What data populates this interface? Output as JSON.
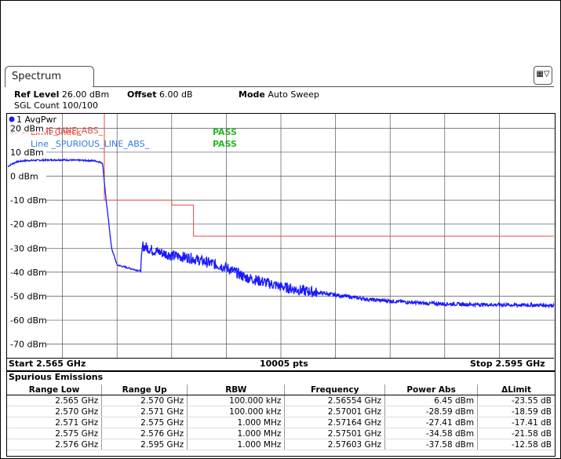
{
  "tab": {
    "label": "Spectrum"
  },
  "config_button": {
    "icon": "settings-config-icon"
  },
  "info": {
    "ref_level_label": "Ref Level",
    "ref_level_value": "26.00 dBm",
    "offset_label": "Offset",
    "offset_value": "6.00 dB",
    "mode_label": "Mode",
    "mode_value": "Auto Sweep",
    "sgl_count": "SGL Count 100/100"
  },
  "trace_label": "1 AvgPwr",
  "limit_lines": [
    {
      "name": "SPURIOUS_LINE_ABS_",
      "check_label": "Limit Check",
      "result": "PASS",
      "color": "#e8483f"
    },
    {
      "name": "Line _SPURIOUS_LINE_ABS_",
      "result": "PASS",
      "color": "#2f7be0"
    }
  ],
  "chart_data": {
    "type": "line",
    "xlim": [
      2.565,
      2.595
    ],
    "ylim": [
      -76,
      26
    ],
    "y_ticks": [
      20,
      10,
      0,
      -10,
      -20,
      -30,
      -40,
      -50,
      -60,
      -70
    ],
    "y_tick_labels": [
      "20 dBm",
      "10 dBm",
      "0 dBm",
      "-10 dBm",
      "-20 dBm",
      "-30 dBm",
      "-40 dBm",
      "-50 dBm",
      "-60 dBm",
      "-70 dBm"
    ],
    "grid": true,
    "trace_color": "#1a1aff",
    "limit_color": "#e8483f",
    "trace_points": [
      [
        2.565,
        4
      ],
      [
        2.5652,
        5
      ],
      [
        2.5655,
        6
      ],
      [
        2.566,
        6.5
      ],
      [
        2.567,
        6.7
      ],
      [
        2.568,
        6.8
      ],
      [
        2.569,
        6.6
      ],
      [
        2.5698,
        6.4
      ],
      [
        2.5702,
        5.5
      ],
      [
        2.5704,
        -10
      ],
      [
        2.5707,
        -30
      ],
      [
        2.571,
        -37
      ],
      [
        2.5715,
        -38
      ],
      [
        2.572,
        -39
      ],
      [
        2.5723,
        -39.5
      ],
      [
        2.5724,
        -29
      ],
      [
        2.573,
        -31
      ],
      [
        2.574,
        -33
      ],
      [
        2.575,
        -34
      ],
      [
        2.576,
        -36
      ],
      [
        2.577,
        -38
      ],
      [
        2.578,
        -42
      ],
      [
        2.579,
        -44
      ],
      [
        2.58,
        -46
      ],
      [
        2.581,
        -47.5
      ],
      [
        2.582,
        -48.5
      ],
      [
        2.583,
        -49.5
      ],
      [
        2.584,
        -50.5
      ],
      [
        2.585,
        -51.5
      ],
      [
        2.586,
        -52
      ],
      [
        2.587,
        -52.5
      ],
      [
        2.588,
        -53
      ],
      [
        2.589,
        -53.2
      ],
      [
        2.59,
        -53.4
      ],
      [
        2.592,
        -53.6
      ],
      [
        2.595,
        -53.8
      ]
    ],
    "limit_points": [
      [
        2.5703,
        26
      ],
      [
        2.5703,
        -10
      ],
      [
        2.574,
        -10
      ],
      [
        2.574,
        -12
      ],
      [
        2.5752,
        -12
      ],
      [
        2.5752,
        -25
      ],
      [
        2.595,
        -25
      ]
    ],
    "start_label": "Start 2.565 GHz",
    "points_label": "10005 pts",
    "stop_label": "Stop 2.595 GHz"
  },
  "table": {
    "title": "Spurious Emissions",
    "columns": [
      "Range Low",
      "Range Up",
      "RBW",
      "Frequency",
      "Power Abs",
      "ΔLimit"
    ],
    "rows": [
      [
        "2.565 GHz",
        "2.570 GHz",
        "100.000 kHz",
        "2.56554 GHz",
        "6.45 dBm",
        "-23.55 dB"
      ],
      [
        "2.570 GHz",
        "2.571 GHz",
        "100.000 kHz",
        "2.57001 GHz",
        "-28.59 dBm",
        "-18.59 dB"
      ],
      [
        "2.571 GHz",
        "2.575 GHz",
        "1.000 MHz",
        "2.57164 GHz",
        "-27.41 dBm",
        "-17.41 dB"
      ],
      [
        "2.575 GHz",
        "2.576 GHz",
        "1.000 MHz",
        "2.57501 GHz",
        "-34.58 dBm",
        "-21.58 dB"
      ],
      [
        "2.576 GHz",
        "2.595 GHz",
        "1.000 MHz",
        "2.57603 GHz",
        "-37.58 dBm",
        "-12.58 dB"
      ]
    ]
  }
}
